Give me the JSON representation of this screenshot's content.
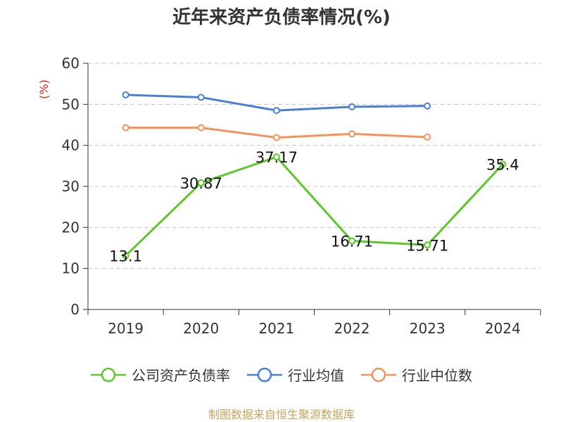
{
  "chart_data": {
    "type": "line",
    "title": "近年来资产负债率情况(%)",
    "ylabel": "(%)",
    "xlabel": "",
    "categories": [
      "2019",
      "2020",
      "2021",
      "2022",
      "2023",
      "2024"
    ],
    "ylim": [
      0,
      60
    ],
    "yticks": [
      "0",
      "10",
      "20",
      "30",
      "40",
      "50",
      "60"
    ],
    "grid": true,
    "legend_position": "bottom",
    "series": [
      {
        "name": "公司资产负债率",
        "color": "#5cc72b",
        "values": [
          13.1,
          30.87,
          37.17,
          16.71,
          15.71,
          35.4
        ],
        "labels": [
          "13.1",
          "30.87",
          "37.17",
          "16.71",
          "15.71",
          "35.4"
        ]
      },
      {
        "name": "行业均值",
        "color": "#4a7fd9",
        "values": [
          52.3,
          51.7,
          48.5,
          49.4,
          49.6,
          null
        ]
      },
      {
        "name": "行业中位数",
        "color": "#f5925a",
        "values": [
          44.3,
          44.3,
          41.9,
          42.8,
          42.0,
          null
        ]
      }
    ]
  },
  "source": "制图数据来自恒生聚源数据库"
}
